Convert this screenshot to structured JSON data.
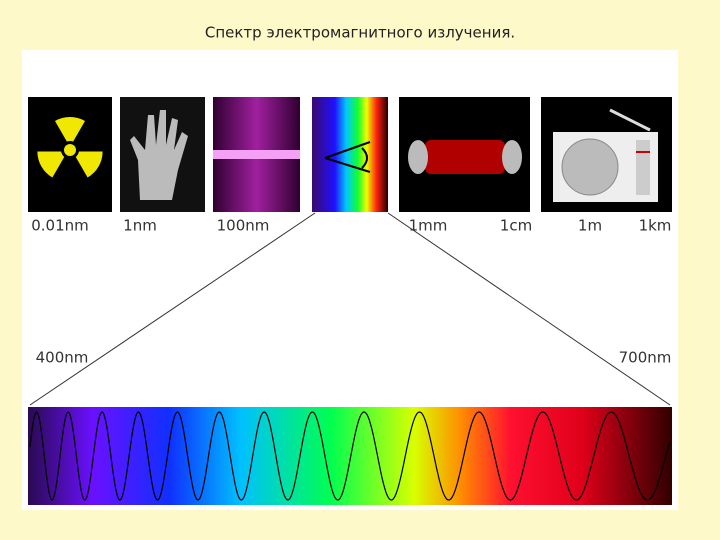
{
  "title": "Спектр электромагнитного излучения.",
  "scale_labels": [
    "0.01nm",
    "1nm",
    "100nm",
    "1mm",
    "1cm",
    "1m",
    "1km"
  ],
  "range_labels": {
    "start": "400nm",
    "end": "700nm"
  }
}
